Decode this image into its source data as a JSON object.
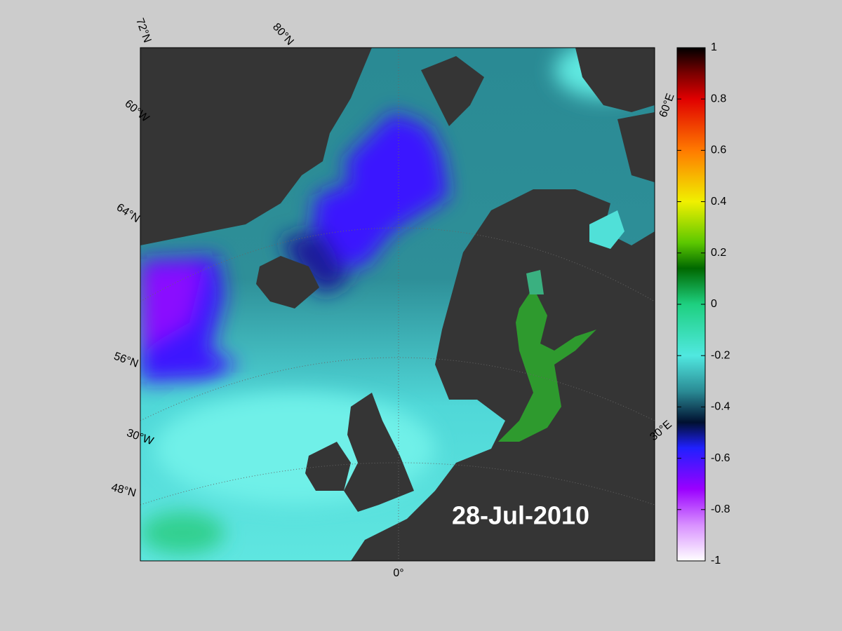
{
  "map": {
    "date": "28-Jul-2010",
    "grid_labels": [
      "72°N",
      "80°N",
      "60°W",
      "64°N",
      "56°N",
      "30°W",
      "48°N",
      "0°",
      "60°E",
      "30°E"
    ]
  },
  "colorbar": {
    "lim": [
      -1,
      1
    ],
    "ticks": [
      1,
      0.8,
      0.6,
      0.4,
      0.2,
      0,
      -0.2,
      -0.4,
      -0.6,
      -0.8,
      -1
    ]
  }
}
